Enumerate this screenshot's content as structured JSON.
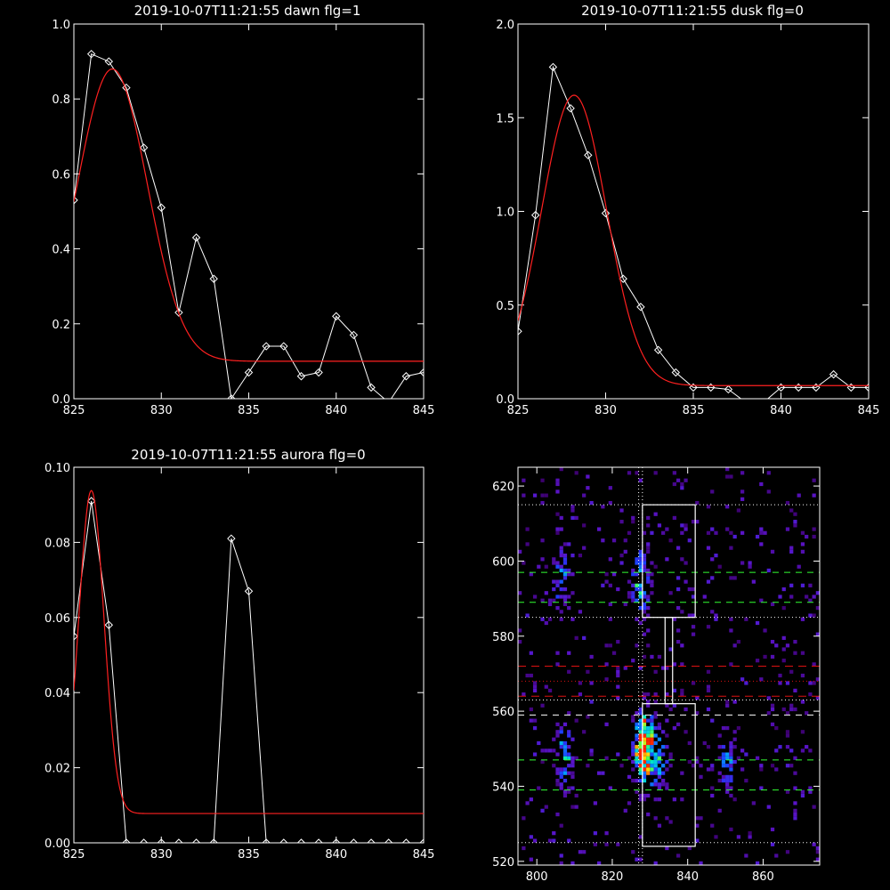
{
  "colors": {
    "background": "#000000",
    "foreground": "#ffffff",
    "fit": "#ff2020",
    "green_dash": "#33ff33",
    "red_dash": "#dd1111"
  },
  "chart_data": [
    {
      "type": "line",
      "title": "2019-10-07T11:21:55 dawn flg=1",
      "xlabel": "",
      "ylabel": "",
      "xlim": [
        825,
        845
      ],
      "ylim": [
        0.0,
        1.0
      ],
      "xticks": [
        825,
        830,
        835,
        840,
        845
      ],
      "xtick_labels": [
        "825",
        "830",
        "835",
        "840",
        "845"
      ],
      "yticks": [
        0.0,
        0.2,
        0.4,
        0.6,
        0.8,
        1.0
      ],
      "ytick_labels": [
        "0.0",
        "0.2",
        "0.4",
        "0.6",
        "0.8",
        "1.0"
      ],
      "series": [
        {
          "style": "data",
          "x": [
            825,
            826,
            827,
            828,
            829,
            830,
            831,
            832,
            833,
            834,
            835,
            836,
            837,
            838,
            839,
            840,
            841,
            842,
            843,
            844,
            845
          ],
          "y": [
            0.53,
            0.92,
            0.9,
            0.83,
            0.67,
            0.51,
            0.23,
            0.43,
            0.32,
            0.0,
            0.07,
            0.14,
            0.14,
            0.06,
            0.07,
            0.22,
            0.17,
            0.03,
            -0.01,
            0.06,
            0.07
          ]
        },
        {
          "style": "fit",
          "fit": {
            "amplitude": 0.78,
            "center": 827.2,
            "sigma": 2.0,
            "offset": 0.1
          }
        }
      ]
    },
    {
      "type": "line",
      "title": "2019-10-07T11:21:55 dusk flg=0",
      "xlabel": "",
      "ylabel": "",
      "xlim": [
        825,
        845
      ],
      "ylim": [
        0.0,
        2.0
      ],
      "xticks": [
        825,
        830,
        835,
        840,
        845
      ],
      "xtick_labels": [
        "825",
        "830",
        "835",
        "840",
        "845"
      ],
      "yticks": [
        0.0,
        0.5,
        1.0,
        1.5,
        2.0
      ],
      "ytick_labels": [
        "0.0",
        "0.5",
        "1.0",
        "1.5",
        "2.0"
      ],
      "series": [
        {
          "style": "data",
          "x": [
            825,
            826,
            827,
            828,
            829,
            830,
            831,
            832,
            833,
            834,
            835,
            836,
            837,
            838,
            839,
            840,
            841,
            842,
            843,
            844,
            845
          ],
          "y": [
            0.36,
            0.98,
            1.77,
            1.55,
            1.3,
            0.99,
            0.64,
            0.49,
            0.26,
            0.14,
            0.06,
            0.06,
            0.05,
            -0.02,
            -0.02,
            0.06,
            0.06,
            0.06,
            0.13,
            0.06,
            0.06
          ]
        },
        {
          "style": "fit",
          "fit": {
            "amplitude": 1.55,
            "center": 828.2,
            "sigma": 1.85,
            "offset": 0.07
          }
        }
      ]
    },
    {
      "type": "line",
      "title": "2019-10-07T11:21:55 aurora flg=0",
      "xlabel": "",
      "ylabel": "",
      "xlim": [
        825,
        845
      ],
      "ylim": [
        0.0,
        0.1
      ],
      "xticks": [
        825,
        830,
        835,
        840,
        845
      ],
      "xtick_labels": [
        "825",
        "830",
        "835",
        "840",
        "845"
      ],
      "yticks": [
        0.0,
        0.02,
        0.04,
        0.06,
        0.08,
        0.1
      ],
      "ytick_labels": [
        "0.00",
        "0.02",
        "0.04",
        "0.06",
        "0.08",
        "0.10"
      ],
      "series": [
        {
          "style": "data",
          "x": [
            825,
            826,
            827,
            828,
            829,
            830,
            831,
            832,
            833,
            834,
            835,
            836,
            837,
            838,
            839,
            840,
            841,
            842,
            843,
            844,
            845
          ],
          "y": [
            0.055,
            0.091,
            0.058,
            0.0,
            0.0,
            0.0,
            0.0,
            0.0,
            0.0,
            0.081,
            0.067,
            0.0,
            0.0,
            0.0,
            0.0,
            0.0,
            0.0,
            0.0,
            0.0,
            0.0,
            0.0
          ]
        },
        {
          "style": "fit",
          "fit": {
            "amplitude": 0.086,
            "center": 826.0,
            "sigma": 0.72,
            "offset": 0.0078
          }
        }
      ]
    },
    {
      "type": "heatmap",
      "title": "",
      "xlabel": "",
      "ylabel": "",
      "xlim": [
        795,
        875
      ],
      "ylim": [
        519,
        625
      ],
      "xticks": [
        800,
        820,
        840,
        860
      ],
      "xtick_labels": [
        "800",
        "820",
        "840",
        "860"
      ],
      "yticks": [
        520,
        540,
        560,
        580,
        600,
        620
      ],
      "ytick_labels": [
        "520",
        "540",
        "560",
        "580",
        "600",
        "620"
      ],
      "hotspots": [
        {
          "x": 828,
          "y": 548,
          "level": 1.0
        },
        {
          "x": 828,
          "y": 552,
          "level": 0.8
        },
        {
          "x": 827,
          "y": 594,
          "level": 0.7
        },
        {
          "x": 807,
          "y": 548,
          "level": 0.6
        },
        {
          "x": 806,
          "y": 594,
          "level": 0.5
        },
        {
          "x": 832,
          "y": 546,
          "level": 0.55
        },
        {
          "x": 850,
          "y": 546,
          "level": 0.45
        }
      ],
      "white_boxes": [
        {
          "x0": 828,
          "x1": 842,
          "y0": 585,
          "y1": 615
        },
        {
          "x0": 828,
          "x1": 842,
          "y0": 524,
          "y1": 562
        },
        {
          "x0": 834,
          "x1": 836,
          "y0": 562,
          "y1": 585
        }
      ],
      "vertical_dotted": [
        827,
        828
      ],
      "white_dotted_y": [
        615,
        585,
        563,
        525
      ],
      "white_dashed_y": [
        559
      ],
      "green_dashed_y": [
        597,
        589,
        547,
        539
      ],
      "red_dashed_y": [
        572,
        564
      ],
      "red_dotted_y": [
        568
      ]
    }
  ]
}
